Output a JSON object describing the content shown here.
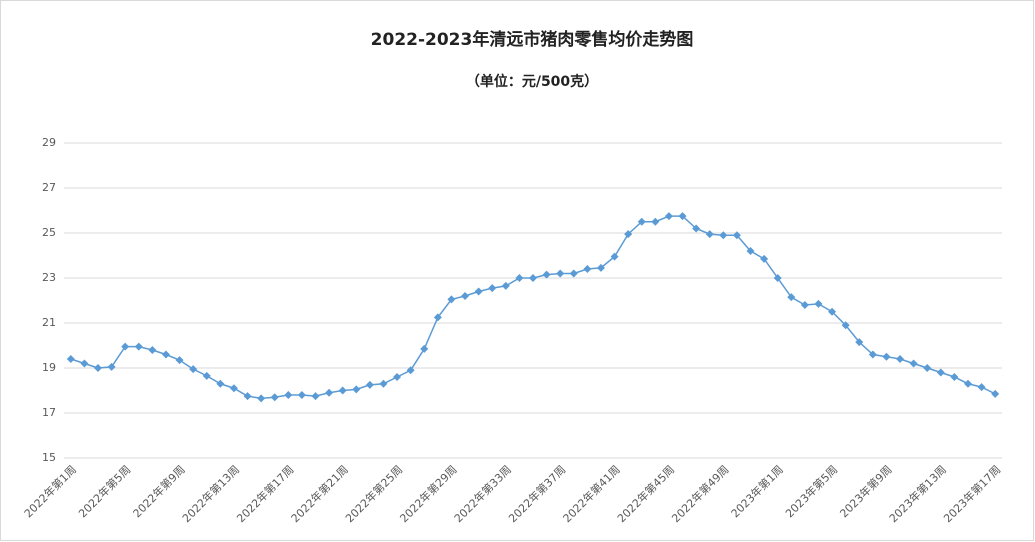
{
  "chart_data": {
    "type": "line",
    "title": "2022-2023年清远市猪肉零售均价走势图",
    "subtitle": "（单位：元/500克）",
    "categories": [
      "2022年第1周",
      null,
      null,
      null,
      "2022年第5周",
      null,
      null,
      null,
      "2022年第9周",
      null,
      null,
      null,
      "2022年第13周",
      null,
      null,
      null,
      "2022年第17周",
      null,
      null,
      null,
      "2022年第21周",
      null,
      null,
      null,
      "2022年第25周",
      null,
      null,
      null,
      "2022年第29周",
      null,
      null,
      null,
      "2022年第33周",
      null,
      null,
      null,
      "2022年第37周",
      null,
      null,
      null,
      "2022年第41周",
      null,
      null,
      null,
      "2022年第45周",
      null,
      null,
      null,
      "2022年第49周",
      null,
      null,
      null,
      "2023年第1周",
      null,
      null,
      null,
      "2023年第5周",
      null,
      null,
      null,
      "2023年第9周",
      null,
      null,
      null,
      "2023年第13周",
      null,
      null,
      null,
      "2023年第17周"
    ],
    "series": [
      {
        "color": "#5b9bd5",
        "values": [
          19.4,
          19.2,
          19.0,
          19.05,
          19.95,
          19.95,
          19.8,
          19.6,
          19.35,
          18.95,
          18.65,
          18.3,
          18.1,
          17.75,
          17.65,
          17.7,
          17.8,
          17.8,
          17.75,
          17.9,
          18.0,
          18.05,
          18.25,
          18.3,
          18.6,
          18.9,
          19.85,
          21.25,
          22.05,
          22.2,
          22.4,
          22.55,
          22.65,
          23.0,
          23.0,
          23.15,
          23.2,
          23.2,
          23.4,
          23.45,
          23.95,
          24.95,
          25.5,
          25.5,
          25.75,
          25.75,
          25.2,
          24.95,
          24.9,
          24.9,
          24.2,
          23.85,
          23.0,
          22.15,
          21.8,
          21.85,
          21.5,
          20.9,
          20.15,
          19.6,
          19.5,
          19.4,
          19.2,
          19.0,
          18.8,
          18.6,
          18.3,
          18.15,
          17.85
        ]
      }
    ],
    "ylim": [
      15,
      29
    ],
    "yticks": [
      15,
      17,
      19,
      21,
      23,
      25,
      27,
      29
    ],
    "grid": true
  }
}
